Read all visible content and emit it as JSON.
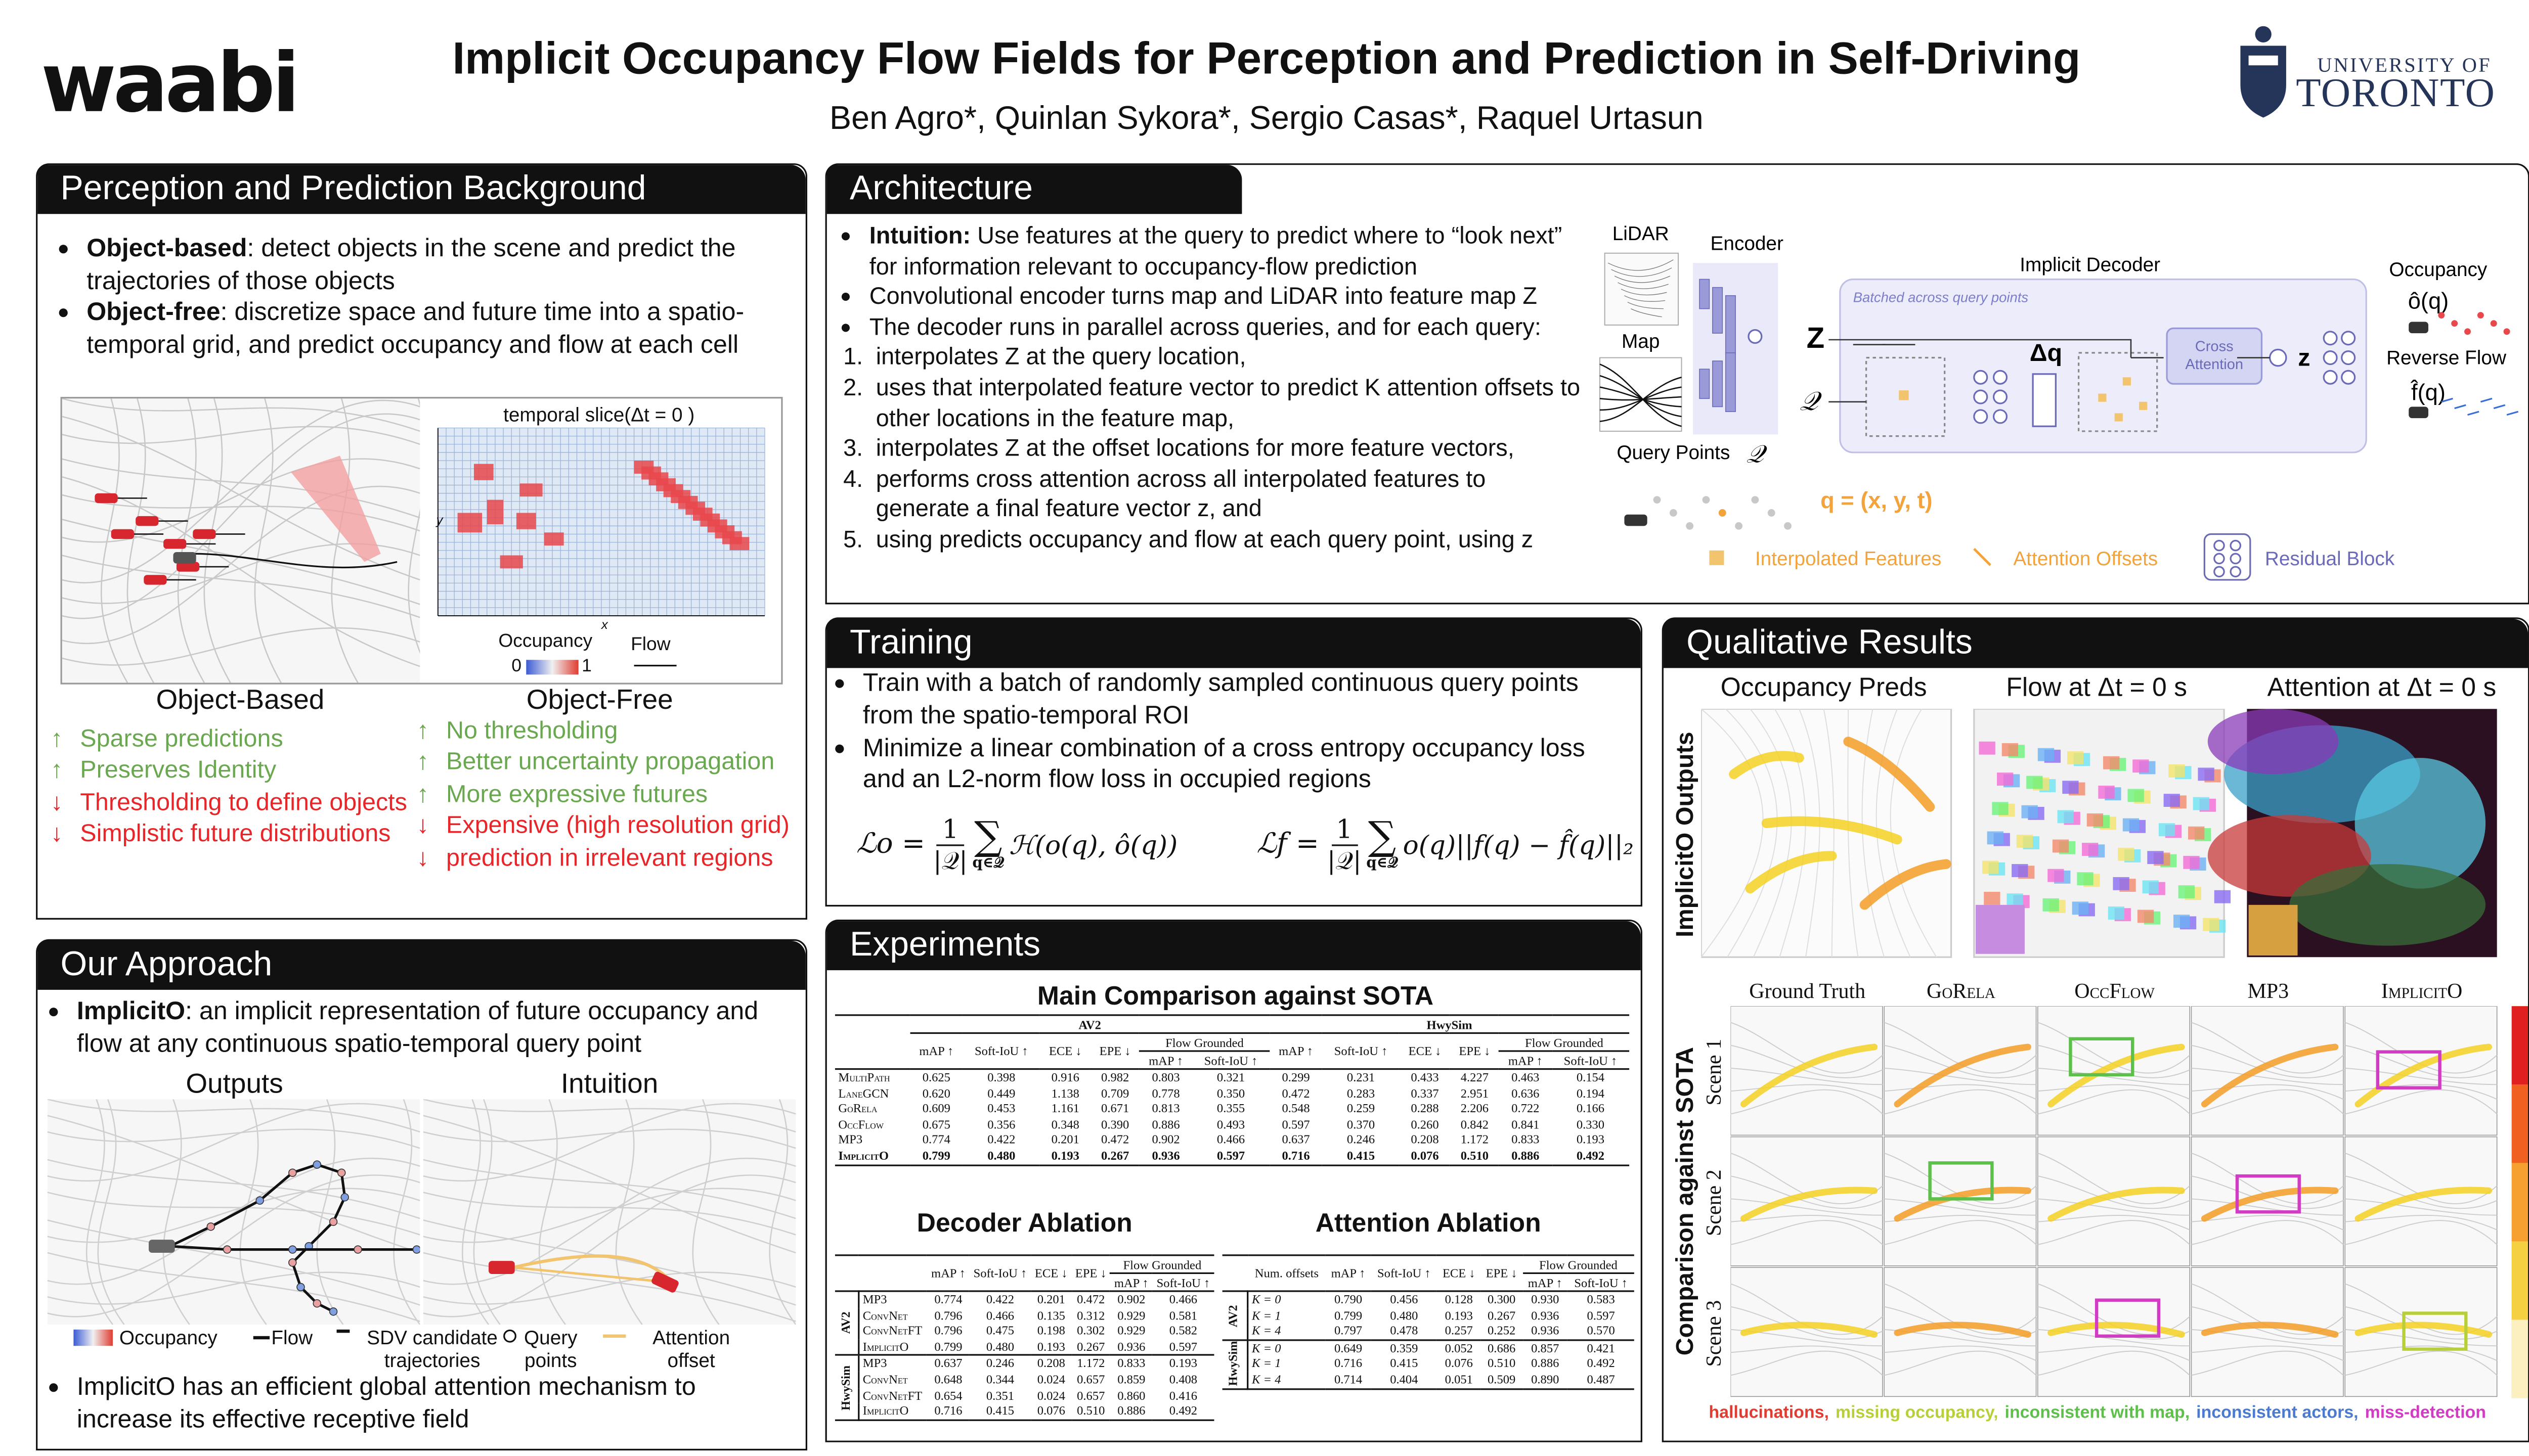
{
  "header": {
    "logo": "waabi",
    "title": "Implicit Occupancy Flow Fields for Perception and Prediction in Self-Driving",
    "authors": "Ben Agro*, Quinlan Sykora*, Sergio Casas*, Raquel Urtasun",
    "university_line1": "UNIVERSITY OF",
    "university_line2": "TORONTO"
  },
  "background": {
    "title": "Perception and Prediction Background",
    "bullets": [
      {
        "bold": "Object-based",
        "text": ": detect objects in the scene and predict the trajectories of those objects"
      },
      {
        "bold": "Object-free",
        "text": ": discretize space and future time into a spatio-temporal grid, and predict occupancy and flow at each cell"
      }
    ],
    "figure": {
      "slice_label": "temporal slice(Δt = 0 )",
      "axis_x": "x",
      "axis_y": "y",
      "occupancy": "Occupancy",
      "occ_min": "0",
      "occ_max": "1",
      "flow": "Flow"
    },
    "columns": [
      {
        "title": "Object-Based",
        "items": [
          {
            "sign": "↑",
            "text": "Sparse predictions",
            "color": "#6aa84f"
          },
          {
            "sign": "↑",
            "text": "Preserves Identity",
            "color": "#6aa84f"
          },
          {
            "sign": "↓",
            "text": "Thresholding to define objects",
            "color": "#e8262a"
          },
          {
            "sign": "↓",
            "text": "Simplistic future distributions",
            "color": "#e8262a"
          }
        ]
      },
      {
        "title": "Object-Free",
        "items": [
          {
            "sign": "↑",
            "text": "No thresholding",
            "color": "#6aa84f"
          },
          {
            "sign": "↑",
            "text": "Better uncertainty propagation",
            "color": "#6aa84f"
          },
          {
            "sign": "↑",
            "text": "More expressive futures",
            "color": "#6aa84f"
          },
          {
            "sign": "↓",
            "text": "Expensive (high resolution grid)",
            "color": "#e8262a"
          },
          {
            "sign": "↓",
            "text": "prediction in irrelevant regions",
            "color": "#e8262a"
          }
        ]
      }
    ]
  },
  "approach": {
    "title": "Our Approach",
    "bullets": [
      {
        "bold": "ImplicitO",
        "text": ": an implicit representation of future occupancy and flow at any continuous spatio-temporal query point"
      }
    ],
    "figure": {
      "outputs": "Outputs",
      "intuition": "Intuition",
      "legend": [
        "Occupancy",
        "Flow",
        "SDV candidate trajectories",
        "Query points",
        "Attention offset"
      ]
    },
    "bullets2": [
      {
        "text": "ImplicitO has an efficient global attention mechanism to increase its effective receptive field"
      }
    ]
  },
  "architecture": {
    "title": "Architecture",
    "bullets": [
      {
        "bold": "Intuition:",
        "text": " Use features at the query to predict where to “look next” for information relevant to occupancy-flow prediction"
      },
      {
        "text": "Convolutional encoder turns map and LiDAR into feature map Z"
      },
      {
        "text": "The decoder runs in parallel across queries, and for each query:",
        "steps": [
          {
            "num": "1.",
            "text": "interpolates Z at the query location,"
          },
          {
            "num": "2.",
            "text": "uses that interpolated feature vector to predict K attention offsets to other locations in the feature map,"
          },
          {
            "num": "3.",
            "text": "interpolates Z at the offset locations for more feature vectors,"
          },
          {
            "num": "4.",
            "text": "performs cross attention across all interpolated features to generate a final feature vector z, and"
          },
          {
            "num": "5.",
            "text": "using predicts occupancy and flow at each query point, using z"
          }
        ]
      }
    ],
    "diagram": {
      "lidar": "LiDAR",
      "encoder": "Encoder",
      "map": "Map",
      "decoder": "Implicit Decoder",
      "batched": "Batched across query points",
      "cross_attention": "Cross Attention",
      "occupancy": "Occupancy",
      "occ_symbol": "ô(q)",
      "reverse_flow": "Reverse Flow",
      "flow_symbol": "f̂(q)",
      "query_points": "Query Points",
      "query_symbol": "𝒬",
      "feature_symbol": "Z",
      "offset_symbol": "Δq",
      "final_symbol": "z",
      "query_def": "q = (x, y, t)",
      "legend": [
        "Interpolated Features",
        "Attention Offsets",
        "Residual Block"
      ]
    }
  },
  "training": {
    "title": "Training",
    "bullets": [
      {
        "text": "Train with a batch of randomly sampled continuous query points from the spatio-temporal ROI"
      },
      {
        "text": "Minimize a linear combination of a cross entropy occupancy loss and an L2-norm flow loss in occupied regions"
      }
    ],
    "equations": [
      {
        "lhs": "ℒo =",
        "num": "1",
        "den": "|𝒬|",
        "sum": "∑",
        "under": "q∈𝒬",
        "body": "ℋ(o(q), ô(q))"
      },
      {
        "lhs": "ℒf =",
        "num": "1",
        "den": "|𝒬|",
        "sum": "∑",
        "under": "q∈𝒬",
        "body": "o(q)||f(q) − f̂(q)||₂"
      }
    ]
  },
  "experiments": {
    "title": "Experiments",
    "main": {
      "title": "Main Comparison against SOTA",
      "groups": [
        "AV2",
        "HwySim"
      ],
      "columns": [
        "mAP ↑",
        "Soft-IoU ↑",
        "ECE ↓",
        "EPE ↓"
      ],
      "flow_grounded": "Flow Grounded",
      "fg_columns": [
        "mAP ↑",
        "Soft-IoU ↑"
      ],
      "rows": [
        {
          "name": "MultiPath",
          "values": [
            "0.625",
            "0.398",
            "0.916",
            "0.982",
            "0.803",
            "0.321",
            "0.299",
            "0.231",
            "0.433",
            "4.227",
            "0.463",
            "0.154"
          ]
        },
        {
          "name": "LaneGCN",
          "values": [
            "0.620",
            "0.449",
            "1.138",
            "0.709",
            "0.778",
            "0.350",
            "0.472",
            "0.283",
            "0.337",
            "2.951",
            "0.636",
            "0.194"
          ]
        },
        {
          "name": "GoRela",
          "values": [
            "0.609",
            "0.453",
            "1.161",
            "0.671",
            "0.813",
            "0.355",
            "0.548",
            "0.259",
            "0.288",
            "2.206",
            "0.722",
            "0.166"
          ]
        },
        {
          "name": "OccFlow",
          "values": [
            "0.675",
            "0.356",
            "0.348",
            "0.390",
            "0.886",
            "0.493",
            "0.597",
            "0.370",
            "0.260",
            "0.842",
            "0.841",
            "0.330"
          ]
        },
        {
          "name": "MP3",
          "values": [
            "0.774",
            "0.422",
            "0.201",
            "0.472",
            "0.902",
            "0.466",
            "0.637",
            "0.246",
            "0.208",
            "1.172",
            "0.833",
            "0.193"
          ]
        },
        {
          "name": "ImplicitO",
          "values": [
            "0.799",
            "0.480",
            "0.193",
            "0.267",
            "0.936",
            "0.597",
            "0.716",
            "0.415",
            "0.076",
            "0.510",
            "0.886",
            "0.492"
          ]
        }
      ]
    },
    "decoder": {
      "title": "Decoder Ablation",
      "columns": [
        "mAP ↑",
        "Soft-IoU ↑",
        "ECE ↓",
        "EPE ↓"
      ],
      "flow_grounded": "Flow Grounded",
      "fg_columns": [
        "mAP ↑",
        "Soft-IoU ↑"
      ],
      "groups": [
        {
          "name": "AV2",
          "rows": [
            {
              "name": "MP3",
              "values": [
                "0.774",
                "0.422",
                "0.201",
                "0.472",
                "0.902",
                "0.466"
              ]
            },
            {
              "name": "ConvNet",
              "values": [
                "0.796",
                "0.466",
                "0.135",
                "0.312",
                "0.929",
                "0.581"
              ]
            },
            {
              "name": "ConvNetFT",
              "values": [
                "0.796",
                "0.475",
                "0.198",
                "0.302",
                "0.929",
                "0.582"
              ]
            },
            {
              "name": "ImplicitO",
              "values": [
                "0.799",
                "0.480",
                "0.193",
                "0.267",
                "0.936",
                "0.597"
              ]
            }
          ]
        },
        {
          "name": "HwySim",
          "rows": [
            {
              "name": "MP3",
              "values": [
                "0.637",
                "0.246",
                "0.208",
                "1.172",
                "0.833",
                "0.193"
              ]
            },
            {
              "name": "ConvNet",
              "values": [
                "0.648",
                "0.344",
                "0.024",
                "0.657",
                "0.859",
                "0.408"
              ]
            },
            {
              "name": "ConvNetFT",
              "values": [
                "0.654",
                "0.351",
                "0.024",
                "0.657",
                "0.860",
                "0.416"
              ]
            },
            {
              "name": "ImplicitO",
              "values": [
                "0.716",
                "0.415",
                "0.076",
                "0.510",
                "0.886",
                "0.492"
              ]
            }
          ]
        }
      ]
    },
    "attention": {
      "title": "Attention Ablation",
      "first_header": "Num. offsets",
      "columns": [
        "mAP ↑",
        "Soft-IoU ↑",
        "ECE ↓",
        "EPE ↓"
      ],
      "flow_grounded": "Flow Grounded",
      "fg_columns": [
        "mAP ↑",
        "Soft-IoU ↑"
      ],
      "groups": [
        {
          "name": "AV2",
          "rows": [
            {
              "name": "K = 0",
              "values": [
                "0.790",
                "0.456",
                "0.128",
                "0.300",
                "0.930",
                "0.583"
              ]
            },
            {
              "name": "K = 1",
              "values": [
                "0.799",
                "0.480",
                "0.193",
                "0.267",
                "0.936",
                "0.597"
              ]
            },
            {
              "name": "K = 4",
              "values": [
                "0.797",
                "0.478",
                "0.257",
                "0.252",
                "0.936",
                "0.570"
              ]
            }
          ]
        },
        {
          "name": "HwySim",
          "rows": [
            {
              "name": "K = 0",
              "values": [
                "0.649",
                "0.359",
                "0.052",
                "0.686",
                "0.857",
                "0.421"
              ]
            },
            {
              "name": "K = 1",
              "values": [
                "0.716",
                "0.415",
                "0.076",
                "0.510",
                "0.886",
                "0.492"
              ]
            },
            {
              "name": "K = 4",
              "values": [
                "0.714",
                "0.404",
                "0.051",
                "0.509",
                "0.890",
                "0.487"
              ]
            }
          ]
        }
      ]
    }
  },
  "qualitative": {
    "title": "Qualitative Results",
    "outputs_label": "ImplicitO Outputs",
    "outputs": [
      "Occupancy Preds",
      "Flow at Δt = 0 s",
      "Attention at Δt = 0 s"
    ],
    "comparison_label": "Comparison against SOTA",
    "methods": [
      "Ground Truth",
      "GoRela",
      "OccFlow",
      "MP3",
      "ImplicitO"
    ],
    "scenes": [
      "Scene 1",
      "Scene 2",
      "Scene 3"
    ],
    "legend": [
      {
        "text": "hallucinations,",
        "color": "#e03c31"
      },
      {
        "text": "missing occupancy,",
        "color": "#b9cf3a"
      },
      {
        "text": "inconsistent with map,",
        "color": "#5cc04a"
      },
      {
        "text": "inconsistent actors,",
        "color": "#4a7bd0"
      },
      {
        "text": "miss-detection",
        "color": "#d23cc4"
      }
    ]
  }
}
